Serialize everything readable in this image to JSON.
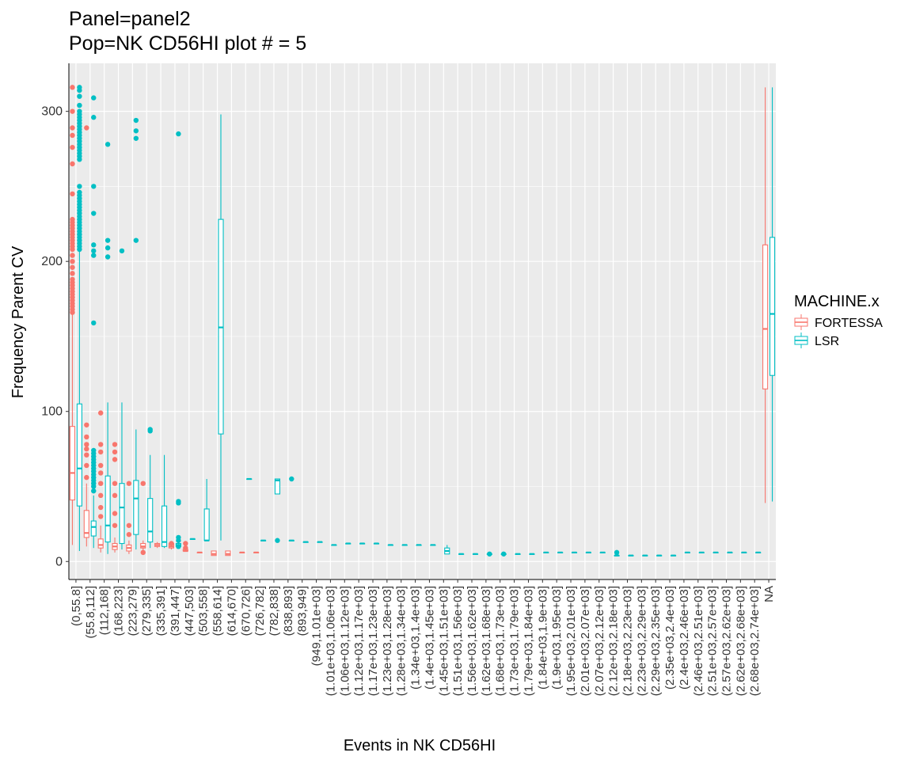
{
  "chart_data": {
    "type": "boxplot",
    "title": [
      "Panel=panel2",
      "Pop=NK CD56HI plot # = 5"
    ],
    "xlabel": "Events in NK CD56HI",
    "ylabel": "Frequency Parent CV",
    "ylim": [
      -12,
      332
    ],
    "yticks": [
      0,
      100,
      200,
      300
    ],
    "categories": [
      "(0,55.8]",
      "(55.8,112]",
      "(112,168]",
      "(168,223]",
      "(223,279]",
      "(279,335]",
      "(335,391]",
      "(391,447]",
      "(447,503]",
      "(503,558]",
      "(558,614]",
      "(614,670]",
      "(670,726]",
      "(726,782]",
      "(782,838]",
      "(838,893]",
      "(893,949]",
      "(949,1.01e+03]",
      "(1.01e+03,1.06e+03]",
      "(1.06e+03,1.12e+03]",
      "(1.12e+03,1.17e+03]",
      "(1.17e+03,1.23e+03]",
      "(1.23e+03,1.28e+03]",
      "(1.28e+03,1.34e+03]",
      "(1.34e+03,1.4e+03]",
      "(1.4e+03,1.45e+03]",
      "(1.45e+03,1.51e+03]",
      "(1.51e+03,1.56e+03]",
      "(1.56e+03,1.62e+03]",
      "(1.62e+03,1.68e+03]",
      "(1.68e+03,1.73e+03]",
      "(1.73e+03,1.79e+03]",
      "(1.79e+03,1.84e+03]",
      "(1.84e+03,1.9e+03]",
      "(1.9e+03,1.95e+03]",
      "(1.95e+03,2.01e+03]",
      "(2.01e+03,2.07e+03]",
      "(2.07e+03,2.12e+03]",
      "(2.12e+03,2.18e+03]",
      "(2.18e+03,2.23e+03]",
      "(2.23e+03,2.29e+03]",
      "(2.29e+03,2.35e+03]",
      "(2.35e+03,2.4e+03]",
      "(2.4e+03,2.46e+03]",
      "(2.46e+03,2.51e+03]",
      "(2.51e+03,2.57e+03]",
      "(2.57e+03,2.62e+03]",
      "(2.62e+03,2.68e+03]",
      "(2.68e+03,2.74e+03]",
      "NA"
    ],
    "legend": {
      "title": "MACHINE.x",
      "position": "right",
      "entries": [
        "FORTESSA",
        "LSR"
      ]
    },
    "colors": {
      "FORTESSA": "#f8766d",
      "LSR": "#00bfc4",
      "panel": "#ebebeb",
      "grid": "#ffffff"
    },
    "series": [
      {
        "name": "FORTESSA",
        "boxes": [
          {
            "cat": 0,
            "lw": 11,
            "q1": 41,
            "med": 59,
            "q3": 90,
            "uw": 165,
            "outliers": [
              166,
              168,
              170,
              172,
              174,
              176,
              178,
              180,
              182,
              184,
              186,
              188,
              192,
              196,
              200,
              204,
              208,
              210,
              212,
              214,
              216,
              218,
              220,
              222,
              224,
              226,
              228,
              245,
              265,
              276,
              284,
              289,
              300,
              316
            ]
          },
          {
            "cat": 1,
            "lw": 10,
            "q1": 16,
            "med": 19,
            "q3": 34,
            "uw": 52,
            "outliers": [
              56,
              64,
              71,
              75,
              78,
              83,
              91,
              289
            ]
          },
          {
            "cat": 2,
            "lw": 6,
            "q1": 9,
            "med": 11,
            "q3": 15,
            "uw": 24,
            "outliers": [
              30,
              36,
              44,
              52,
              59,
              64,
              73,
              78,
              99
            ]
          },
          {
            "cat": 3,
            "lw": 6,
            "q1": 8,
            "med": 10,
            "q3": 12,
            "uw": 16,
            "outliers": [
              24,
              32,
              44,
              52,
              68,
              73,
              78
            ]
          },
          {
            "cat": 4,
            "lw": 5,
            "q1": 7,
            "med": 9,
            "q3": 11,
            "uw": 14,
            "outliers": [
              18,
              24,
              52
            ]
          },
          {
            "cat": 5,
            "lw": 7,
            "q1": 9,
            "med": 10,
            "q3": 12,
            "uw": 14,
            "outliers": [
              6,
              52
            ]
          },
          {
            "cat": 6,
            "lw": 9,
            "q1": 10,
            "med": 11,
            "q3": 12,
            "uw": 13,
            "outliers": []
          },
          {
            "cat": 7,
            "lw": 8,
            "q1": 9,
            "med": 10,
            "q3": 12,
            "uw": 13,
            "outliers": [
              12
            ]
          },
          {
            "cat": 8,
            "lw": 7,
            "q1": 7,
            "med": 7,
            "q3": 8,
            "uw": 8,
            "outliers": [
              9,
              12
            ]
          },
          {
            "cat": 9,
            "lw": 6,
            "q1": 6,
            "med": 6,
            "q3": 6,
            "uw": 6,
            "outliers": []
          },
          {
            "cat": 10,
            "lw": 4,
            "q1": 4,
            "med": 5,
            "q3": 7,
            "uw": 7,
            "outliers": []
          },
          {
            "cat": 11,
            "lw": 4,
            "q1": 4,
            "med": 5,
            "q3": 7,
            "uw": 7,
            "outliers": []
          },
          {
            "cat": 12,
            "lw": 6,
            "q1": 6,
            "med": 6,
            "q3": 6,
            "uw": 6,
            "outliers": []
          },
          {
            "cat": 13,
            "lw": 6,
            "q1": 6,
            "med": 6,
            "q3": 6,
            "uw": 6,
            "outliers": []
          },
          {
            "cat": 49,
            "lw": 39,
            "q1": 115,
            "med": 155,
            "q3": 211,
            "uw": 316,
            "outliers": []
          }
        ]
      },
      {
        "name": "LSR",
        "boxes": [
          {
            "cat": 0,
            "lw": 7,
            "q1": 37,
            "med": 62,
            "q3": 105,
            "uw": 207,
            "outliers": [
              208,
              210,
              212,
              214,
              216,
              218,
              220,
              222,
              224,
              226,
              228,
              230,
              232,
              234,
              236,
              238,
              240,
              242,
              244,
              246,
              250,
              268,
              270,
              272,
              274,
              276,
              278,
              280,
              282,
              284,
              286,
              288,
              290,
              292,
              294,
              296,
              298,
              300,
              304,
              310,
              314,
              316
            ]
          },
          {
            "cat": 1,
            "lw": 9,
            "q1": 17,
            "med": 23,
            "q3": 27,
            "uw": 44,
            "outliers": [
              47,
              50,
              52,
              54,
              56,
              58,
              60,
              62,
              64,
              66,
              68,
              70,
              72,
              74,
              159,
              204,
              207,
              211,
              232,
              250,
              296,
              309
            ]
          },
          {
            "cat": 2,
            "lw": 5,
            "q1": 13,
            "med": 24,
            "q3": 57,
            "uw": 106,
            "outliers": [
              203,
              209,
              214,
              278
            ]
          },
          {
            "cat": 3,
            "lw": 8,
            "q1": 12,
            "med": 36,
            "q3": 52,
            "uw": 106,
            "outliers": [
              207
            ]
          },
          {
            "cat": 4,
            "lw": 8,
            "q1": 18,
            "med": 42,
            "q3": 54,
            "uw": 88,
            "outliers": [
              214,
              282,
              287,
              294
            ]
          },
          {
            "cat": 5,
            "lw": 9,
            "q1": 13,
            "med": 20,
            "q3": 42,
            "uw": 71,
            "outliers": [
              87,
              88
            ]
          },
          {
            "cat": 6,
            "lw": 9,
            "q1": 10,
            "med": 13,
            "q3": 37,
            "uw": 71,
            "outliers": []
          },
          {
            "cat": 7,
            "lw": 9,
            "q1": 10,
            "med": 11,
            "q3": 12,
            "uw": 13,
            "outliers": [
              10,
              14,
              16,
              39,
              40,
              285
            ]
          },
          {
            "cat": 8,
            "lw": 15,
            "q1": 15,
            "med": 15,
            "q3": 15,
            "uw": 15,
            "outliers": []
          },
          {
            "cat": 9,
            "lw": 14,
            "q1": 14,
            "med": 14,
            "q3": 35,
            "uw": 55,
            "outliers": []
          },
          {
            "cat": 10,
            "lw": 14,
            "q1": 85,
            "med": 156,
            "q3": 228,
            "uw": 298,
            "outliers": []
          },
          {
            "cat": 12,
            "lw": 55,
            "q1": 55,
            "med": 55,
            "q3": 55,
            "uw": 55,
            "outliers": []
          },
          {
            "cat": 13,
            "lw": 14,
            "q1": 14,
            "med": 14,
            "q3": 14,
            "uw": 14,
            "outliers": []
          },
          {
            "cat": 14,
            "lw": 45,
            "q1": 45,
            "med": 54,
            "q3": 55,
            "uw": 55,
            "outliers": [
              14
            ]
          },
          {
            "cat": 15,
            "lw": 14,
            "q1": 14,
            "med": 14,
            "q3": 14,
            "uw": 14,
            "outliers": [
              55
            ]
          },
          {
            "cat": 16,
            "lw": 13,
            "q1": 13,
            "med": 13,
            "q3": 13,
            "uw": 13,
            "outliers": []
          },
          {
            "cat": 17,
            "lw": 13,
            "q1": 13,
            "med": 13,
            "q3": 13,
            "uw": 13,
            "outliers": []
          },
          {
            "cat": 18,
            "lw": 11,
            "q1": 11,
            "med": 11,
            "q3": 11,
            "uw": 11,
            "outliers": []
          },
          {
            "cat": 19,
            "lw": 12,
            "q1": 12,
            "med": 12,
            "q3": 12,
            "uw": 12,
            "outliers": []
          },
          {
            "cat": 20,
            "lw": 12,
            "q1": 12,
            "med": 12,
            "q3": 12,
            "uw": 12,
            "outliers": []
          },
          {
            "cat": 21,
            "lw": 12,
            "q1": 12,
            "med": 12,
            "q3": 12,
            "uw": 12,
            "outliers": []
          },
          {
            "cat": 22,
            "lw": 11,
            "q1": 11,
            "med": 11,
            "q3": 11,
            "uw": 11,
            "outliers": []
          },
          {
            "cat": 23,
            "lw": 11,
            "q1": 11,
            "med": 11,
            "q3": 11,
            "uw": 11,
            "outliers": []
          },
          {
            "cat": 24,
            "lw": 11,
            "q1": 11,
            "med": 11,
            "q3": 11,
            "uw": 11,
            "outliers": []
          },
          {
            "cat": 25,
            "lw": 11,
            "q1": 11,
            "med": 11,
            "q3": 11,
            "uw": 11,
            "outliers": []
          },
          {
            "cat": 26,
            "lw": 5,
            "q1": 5,
            "med": 7,
            "q3": 9,
            "uw": 11,
            "outliers": []
          },
          {
            "cat": 27,
            "lw": 5,
            "q1": 5,
            "med": 5,
            "q3": 5,
            "uw": 5,
            "outliers": []
          },
          {
            "cat": 28,
            "lw": 5,
            "q1": 5,
            "med": 5,
            "q3": 5,
            "uw": 5,
            "outliers": []
          },
          {
            "cat": 29,
            "lw": 5,
            "q1": 5,
            "med": 5,
            "q3": 5,
            "uw": 5,
            "outliers": [
              5
            ]
          },
          {
            "cat": 30,
            "lw": 5,
            "q1": 5,
            "med": 5,
            "q3": 5,
            "uw": 5,
            "outliers": [
              5
            ]
          },
          {
            "cat": 31,
            "lw": 5,
            "q1": 5,
            "med": 5,
            "q3": 5,
            "uw": 5,
            "outliers": []
          },
          {
            "cat": 32,
            "lw": 5,
            "q1": 5,
            "med": 5,
            "q3": 5,
            "uw": 5,
            "outliers": []
          },
          {
            "cat": 33,
            "lw": 6,
            "q1": 6,
            "med": 6,
            "q3": 6,
            "uw": 6,
            "outliers": []
          },
          {
            "cat": 34,
            "lw": 6,
            "q1": 6,
            "med": 6,
            "q3": 6,
            "uw": 6,
            "outliers": []
          },
          {
            "cat": 35,
            "lw": 6,
            "q1": 6,
            "med": 6,
            "q3": 6,
            "uw": 6,
            "outliers": []
          },
          {
            "cat": 36,
            "lw": 6,
            "q1": 6,
            "med": 6,
            "q3": 6,
            "uw": 6,
            "outliers": []
          },
          {
            "cat": 37,
            "lw": 6,
            "q1": 6,
            "med": 6,
            "q3": 6,
            "uw": 6,
            "outliers": []
          },
          {
            "cat": 38,
            "lw": 4,
            "q1": 4,
            "med": 4,
            "q3": 4,
            "uw": 4,
            "outliers": [
              6
            ]
          },
          {
            "cat": 39,
            "lw": 4,
            "q1": 4,
            "med": 4,
            "q3": 4,
            "uw": 4,
            "outliers": []
          },
          {
            "cat": 40,
            "lw": 4,
            "q1": 4,
            "med": 4,
            "q3": 4,
            "uw": 4,
            "outliers": []
          },
          {
            "cat": 41,
            "lw": 4,
            "q1": 4,
            "med": 4,
            "q3": 4,
            "uw": 4,
            "outliers": []
          },
          {
            "cat": 42,
            "lw": 4,
            "q1": 4,
            "med": 4,
            "q3": 4,
            "uw": 4,
            "outliers": []
          },
          {
            "cat": 43,
            "lw": 6,
            "q1": 6,
            "med": 6,
            "q3": 6,
            "uw": 6,
            "outliers": []
          },
          {
            "cat": 44,
            "lw": 6,
            "q1": 6,
            "med": 6,
            "q3": 6,
            "uw": 6,
            "outliers": []
          },
          {
            "cat": 45,
            "lw": 6,
            "q1": 6,
            "med": 6,
            "q3": 6,
            "uw": 6,
            "outliers": []
          },
          {
            "cat": 46,
            "lw": 6,
            "q1": 6,
            "med": 6,
            "q3": 6,
            "uw": 6,
            "outliers": []
          },
          {
            "cat": 47,
            "lw": 6,
            "q1": 6,
            "med": 6,
            "q3": 6,
            "uw": 6,
            "outliers": []
          },
          {
            "cat": 48,
            "lw": 6,
            "q1": 6,
            "med": 6,
            "q3": 6,
            "uw": 6,
            "outliers": []
          },
          {
            "cat": 49,
            "lw": 40,
            "q1": 124,
            "med": 165,
            "q3": 216,
            "uw": 316,
            "outliers": []
          }
        ]
      }
    ]
  }
}
